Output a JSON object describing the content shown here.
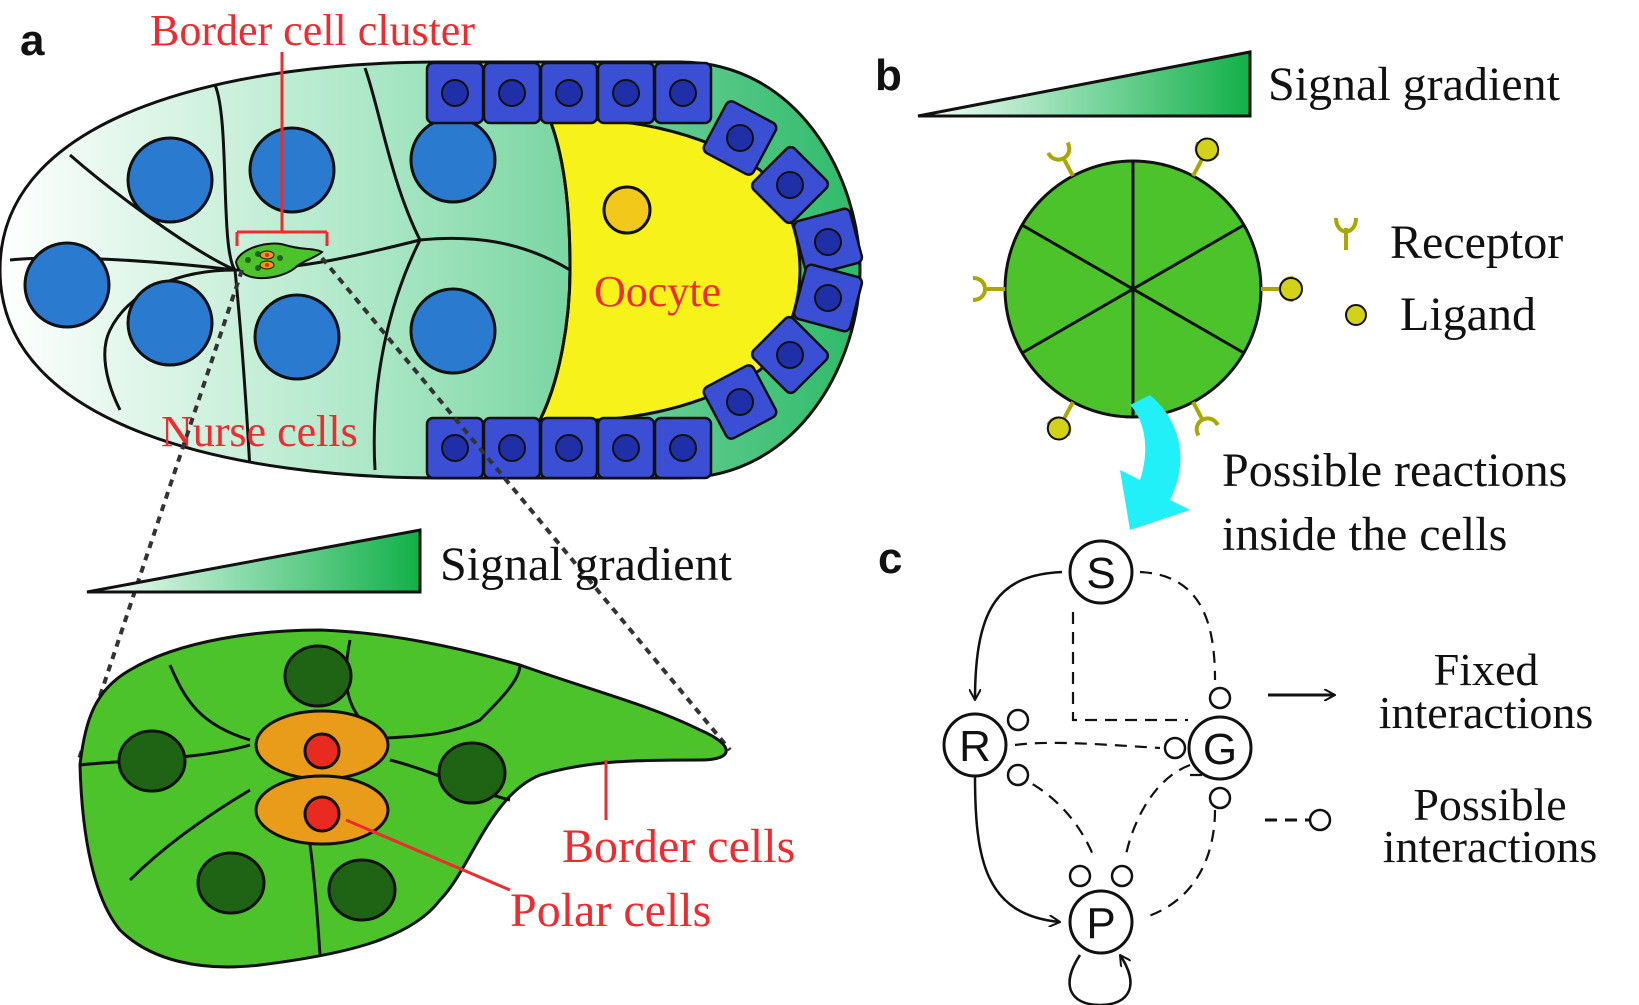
{
  "panel_labels": {
    "a": "a",
    "b": "b",
    "c": "c"
  },
  "panel_a": {
    "border_cell_cluster": "Border cell cluster",
    "nurse_cells": "Nurse cells",
    "oocyte": "Oocyte",
    "signal_gradient": "Signal gradient",
    "border_cells": "Border cells",
    "polar_cells": "Polar cells"
  },
  "panel_b": {
    "signal_gradient": "Signal gradient",
    "receptor": "Receptor",
    "ligand": "Ligand",
    "reactions_line1": "Possible reactions",
    "reactions_line2": "inside the cells"
  },
  "panel_c": {
    "nodes": {
      "s": "S",
      "r": "R",
      "g": "G",
      "p": "P"
    },
    "fixed_line1": "Fixed",
    "fixed_line2": "interactions",
    "possible_line1": "Possible",
    "possible_line2": "interactions"
  },
  "colors": {
    "nurse_nucleus": "#2a7ad0",
    "follicle_cell": "#3a4fd4",
    "follicle_nucleus": "#1f2fa8",
    "oocyte": "#f7f21a",
    "oocyte_nucleus": "#f2c81a",
    "border_cell": "#4cc22b",
    "border_nucleus": "#1f6414",
    "polar_cell": "#e89c1a",
    "polar_nucleus": "#e82a20",
    "gradient_end": "#12b048",
    "receptor": "#d2d218",
    "arrow_cyan": "#22f0f8",
    "label_red": "#ee2b2e"
  }
}
